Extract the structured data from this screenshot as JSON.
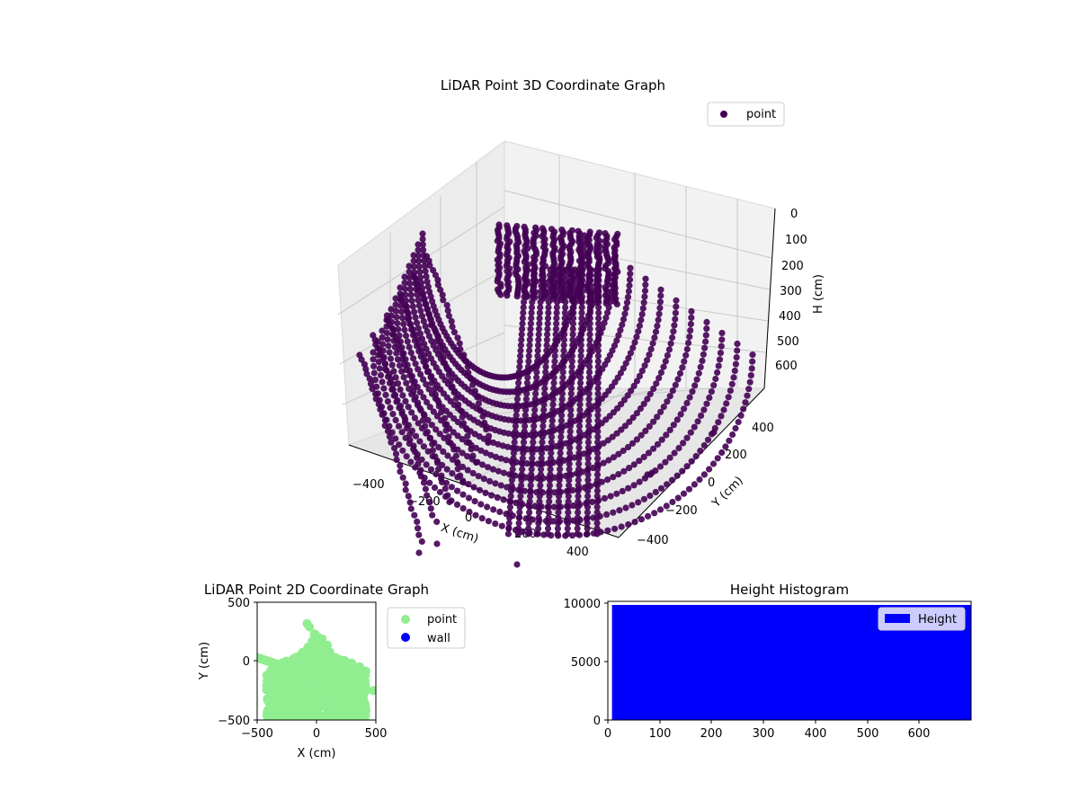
{
  "chart_data": [
    {
      "type": "scatter3d",
      "title": "LiDAR Point 3D Coordinate Graph",
      "xlabel": "X (cm)",
      "ylabel": "Y (cm)",
      "zlabel": "H (cm)",
      "x_ticks": [
        "−400",
        "−200",
        "0",
        "200",
        "400"
      ],
      "y_ticks": [
        "−400",
        "−200",
        "0",
        "200",
        "400"
      ],
      "z_ticks": [
        "0",
        "100",
        "200",
        "300",
        "400",
        "500",
        "600"
      ],
      "z_inverted": true,
      "legend": [
        {
          "label": "point",
          "color": "#440154"
        }
      ],
      "legend_position": "upper-right",
      "grid": true
    },
    {
      "type": "scatter",
      "title": "LiDAR Point 2D Coordinate Graph",
      "xlabel": "X (cm)",
      "ylabel": "Y (cm)",
      "xlim": [
        -500,
        500
      ],
      "ylim": [
        -500,
        500
      ],
      "x_ticks": [
        "−500",
        "0",
        "500"
      ],
      "y_ticks": [
        "−500",
        "0",
        "500"
      ],
      "series": [
        {
          "name": "point",
          "color": "#90ee90"
        },
        {
          "name": "wall",
          "color": "#0000ff"
        }
      ],
      "legend_position": "outside-upper-right"
    },
    {
      "type": "bar",
      "title": "Height Histogram",
      "xlim": [
        0,
        700
      ],
      "ylim": [
        0,
        10000
      ],
      "x_ticks": [
        "0",
        "100",
        "200",
        "300",
        "400",
        "500",
        "600"
      ],
      "y_ticks": [
        "0",
        "5000",
        "10000"
      ],
      "series": [
        {
          "name": "Height",
          "color": "#0000ff"
        }
      ],
      "bars": [
        {
          "x0": 8,
          "x1": 700,
          "value": 9700
        }
      ],
      "legend_position": "upper-right"
    }
  ]
}
